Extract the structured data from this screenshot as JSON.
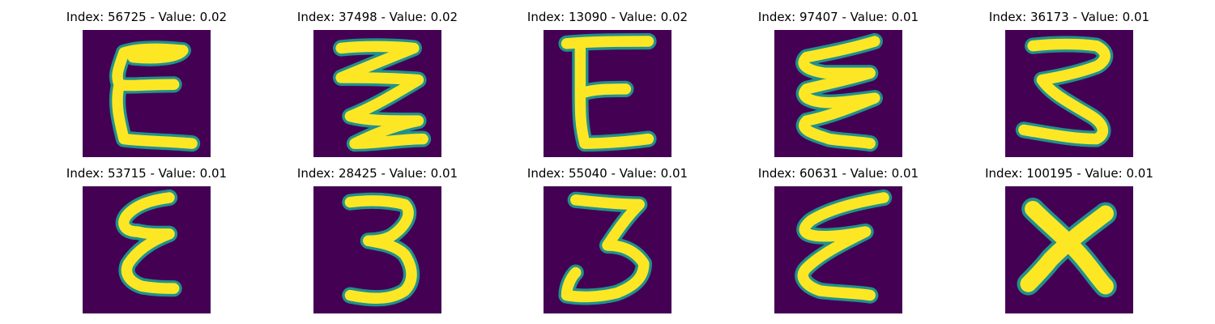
{
  "colors": {
    "background": "#440154",
    "stroke_outer": "#21918c",
    "stroke_mid": "#5ec962",
    "stroke_core": "#fde725"
  },
  "panels": [
    {
      "title": "Index: 56725 - Value: 0.02",
      "glyph": "epsilon-with-top-bar"
    },
    {
      "title": "Index: 37498 - Value: 0.02",
      "glyph": "zigzag-z"
    },
    {
      "title": "Index: 13090 - Value: 0.02",
      "glyph": "letter-e"
    },
    {
      "title": "Index: 97407 - Value: 0.01",
      "glyph": "wavy-epsilon"
    },
    {
      "title": "Index: 36173 - Value: 0.01",
      "glyph": "zigzag-3"
    },
    {
      "title": "Index: 53715 - Value: 0.01",
      "glyph": "epsilon"
    },
    {
      "title": "Index: 28425 - Value: 0.01",
      "glyph": "digit-3"
    },
    {
      "title": "Index: 55040 - Value: 0.01",
      "glyph": "digit-3-angular"
    },
    {
      "title": "Index: 60631 - Value: 0.01",
      "glyph": "slanted-epsilon"
    },
    {
      "title": "Index: 100195 - Value: 0.01",
      "glyph": "letter-x"
    }
  ]
}
